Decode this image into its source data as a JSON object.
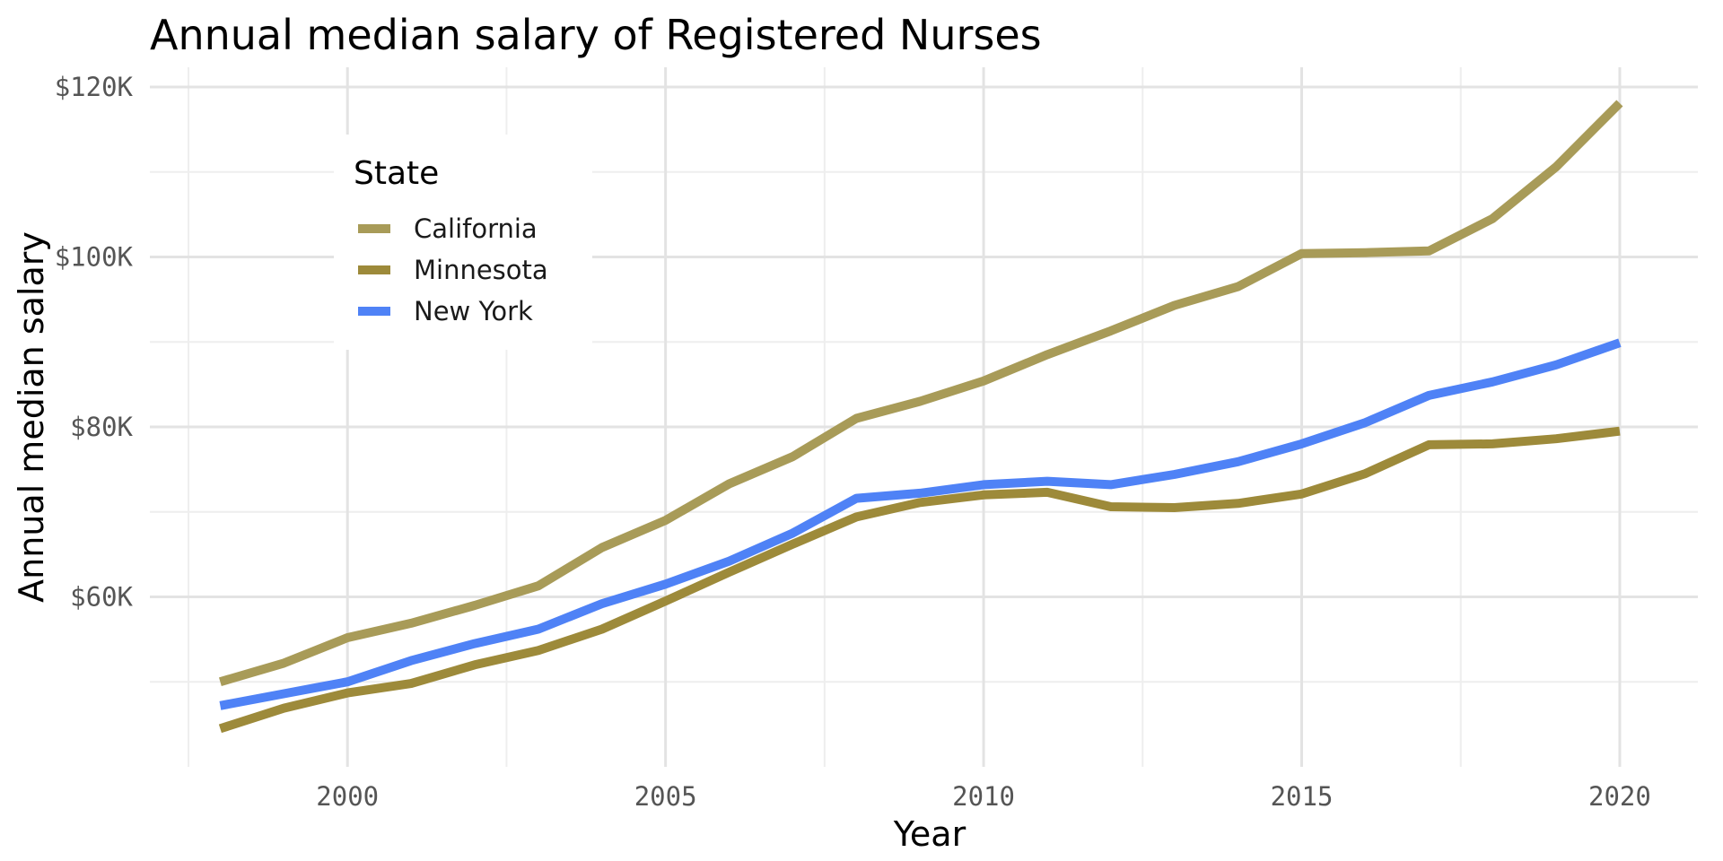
{
  "chart_data": {
    "type": "line",
    "title": "Annual median salary of Registered Nurses",
    "xlabel": "Year",
    "ylabel": "Annual median salary",
    "xlim": [
      1997.5,
      2021.2
    ],
    "ylim": [
      40000,
      122000
    ],
    "x_ticks": [
      {
        "value": 2000,
        "label": "2000"
      },
      {
        "value": 2005,
        "label": "2005"
      },
      {
        "value": 2010,
        "label": "2010"
      },
      {
        "value": 2015,
        "label": "2015"
      },
      {
        "value": 2020,
        "label": "2020"
      }
    ],
    "x_minor_ticks": [
      1997.5,
      2002.5,
      2007.5,
      2012.5,
      2017.5
    ],
    "y_ticks": [
      {
        "value": 60000,
        "label": "$60K"
      },
      {
        "value": 80000,
        "label": "$80K"
      },
      {
        "value": 100000,
        "label": "$100K"
      },
      {
        "value": 120000,
        "label": "$120K"
      }
    ],
    "y_minor_ticks": [
      50000,
      70000,
      90000,
      110000
    ],
    "grid": true,
    "legend": {
      "title": "State",
      "position": "top-left"
    },
    "x": [
      1998,
      1999,
      2000,
      2001,
      2002,
      2003,
      2004,
      2005,
      2006,
      2007,
      2008,
      2009,
      2010,
      2011,
      2012,
      2013,
      2014,
      2015,
      2016,
      2017,
      2018,
      2019,
      2020
    ],
    "series": [
      {
        "name": "California",
        "color": "#a89b58",
        "values": [
          50000,
          52200,
          55200,
          56900,
          59000,
          61300,
          65800,
          69000,
          73300,
          76500,
          81000,
          83000,
          85400,
          88500,
          91300,
          94300,
          96500,
          100400,
          100500,
          100700,
          104500,
          110600,
          118100
        ]
      },
      {
        "name": "Minnesota",
        "color": "#9d8a3a",
        "values": [
          44500,
          46900,
          48700,
          49800,
          52000,
          53700,
          56200,
          59500,
          62900,
          66200,
          69400,
          71100,
          72000,
          72300,
          70600,
          70500,
          71000,
          72100,
          74500,
          77900,
          78000,
          78600,
          79500
        ]
      },
      {
        "name": "New York",
        "color": "#4f82f6",
        "values": [
          47200,
          48600,
          50000,
          52500,
          54500,
          56200,
          59200,
          61500,
          64200,
          67500,
          71600,
          72200,
          73200,
          73600,
          73200,
          74400,
          75900,
          78000,
          80500,
          83700,
          85300,
          87300,
          89900
        ]
      }
    ]
  }
}
